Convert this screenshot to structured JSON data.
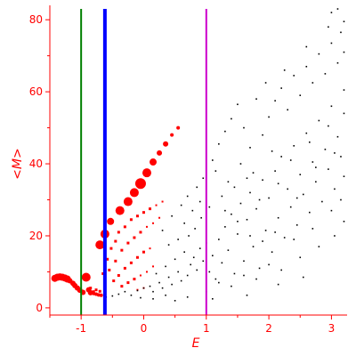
{
  "chart_data": {
    "type": "scatter",
    "title": "",
    "xlabel": "E",
    "ylabel": "<M>",
    "xlim": [
      -1.5,
      3.25
    ],
    "ylim": [
      -2,
      84
    ],
    "xticks": [
      -1,
      0,
      1,
      2,
      3
    ],
    "yticks": [
      0,
      20,
      40,
      60,
      80
    ],
    "xtick_labels": [
      "-1",
      "0",
      "1",
      "2",
      "3"
    ],
    "ytick_labels": [
      "0",
      "20",
      "40",
      "60",
      "80"
    ],
    "grid": false,
    "axis_color": "#ff0000",
    "vertical_lines": [
      {
        "x": -1.0,
        "color": "#008000",
        "weight": "thin"
      },
      {
        "x": -0.62,
        "color": "#0000ff",
        "weight": "thick"
      },
      {
        "x": 1.0,
        "color": "#cc00cc",
        "weight": "thin"
      }
    ],
    "series": [
      {
        "color": "#ff0000",
        "marker": "circle",
        "points": [
          [
            -1.42,
            8.2,
            4
          ],
          [
            -1.38,
            8.5,
            4
          ],
          [
            -1.34,
            8.6,
            4
          ],
          [
            -1.3,
            8.5,
            4
          ],
          [
            -1.26,
            8.3,
            4
          ],
          [
            -1.22,
            8.0,
            4
          ],
          [
            -1.18,
            7.5,
            3
          ],
          [
            -1.13,
            6.8,
            3
          ],
          [
            -1.1,
            6.2,
            3
          ],
          [
            -1.06,
            5.5,
            3
          ],
          [
            -1.02,
            4.9,
            3
          ],
          [
            -0.97,
            4.3,
            3
          ],
          [
            -0.92,
            8.5,
            5
          ],
          [
            -0.88,
            5.0,
            3
          ],
          [
            -0.85,
            4.2,
            3
          ],
          [
            -0.8,
            4.0,
            2
          ],
          [
            -0.76,
            3.8,
            2
          ],
          [
            -0.72,
            3.6,
            2
          ],
          [
            -0.68,
            3.5,
            2
          ],
          [
            -0.7,
            17.5,
            5
          ],
          [
            -0.62,
            20.5,
            5
          ],
          [
            -0.53,
            24.0,
            4
          ],
          [
            -0.38,
            27.0,
            5
          ],
          [
            -0.25,
            29.5,
            5
          ],
          [
            -0.15,
            32.0,
            5
          ],
          [
            -0.05,
            34.5,
            6
          ],
          [
            0.05,
            37.5,
            5
          ],
          [
            0.15,
            40.5,
            4
          ],
          [
            0.25,
            43.0,
            3
          ],
          [
            0.35,
            45.5,
            3
          ],
          [
            0.45,
            48.0,
            2
          ],
          [
            0.55,
            50.0,
            2
          ]
        ]
      },
      {
        "color": "#ff0000",
        "marker": "square",
        "points": [
          [
            -0.85,
            5.5,
            3
          ],
          [
            -0.8,
            4.5,
            3
          ],
          [
            -0.76,
            5.0,
            3
          ],
          [
            -0.7,
            4.6,
            3
          ],
          [
            -0.65,
            9.5,
            3
          ],
          [
            -0.58,
            13.5,
            3
          ],
          [
            -0.52,
            16.5,
            3
          ],
          [
            -0.45,
            18.5,
            3
          ],
          [
            -0.4,
            21.0,
            3
          ],
          [
            -0.3,
            22.5,
            3
          ],
          [
            -0.2,
            24.5,
            3
          ],
          [
            -0.1,
            25.5,
            3
          ],
          [
            0.0,
            26.5,
            3
          ],
          [
            0.1,
            27.5,
            3
          ],
          [
            0.2,
            28.5,
            2
          ],
          [
            0.3,
            29.5,
            2
          ],
          [
            -0.55,
            10.5,
            3
          ],
          [
            -0.45,
            13.0,
            3
          ],
          [
            -0.35,
            16.0,
            3
          ],
          [
            -0.25,
            18.0,
            3
          ],
          [
            -0.15,
            19.5,
            3
          ],
          [
            -0.05,
            21.0,
            3
          ],
          [
            0.05,
            22.5,
            2
          ],
          [
            0.15,
            23.5,
            2
          ],
          [
            0.25,
            25.0,
            2
          ],
          [
            -0.48,
            7.5,
            3
          ],
          [
            -0.4,
            9.0,
            3
          ],
          [
            -0.3,
            11.0,
            3
          ],
          [
            -0.2,
            12.5,
            3
          ],
          [
            -0.1,
            14.0,
            3
          ],
          [
            0.0,
            15.5,
            3
          ],
          [
            0.1,
            16.5,
            2
          ],
          [
            -0.35,
            6.0,
            3
          ],
          [
            -0.25,
            7.0,
            3
          ],
          [
            -0.15,
            8.0,
            3
          ],
          [
            -0.05,
            9.0,
            2
          ],
          [
            0.05,
            10.0,
            2
          ],
          [
            0.15,
            11.5,
            2
          ],
          [
            -0.1,
            5.0,
            2
          ],
          [
            0.0,
            5.5,
            2
          ]
        ]
      },
      {
        "color": "#000000",
        "marker": "dot",
        "points": [
          [
            -0.6,
            3.0
          ],
          [
            -0.5,
            3.3
          ],
          [
            -0.4,
            3.8
          ],
          [
            -0.3,
            4.5
          ],
          [
            -0.2,
            3.5
          ],
          [
            -0.1,
            4.8
          ],
          [
            0.0,
            5.5
          ],
          [
            0.1,
            6.0
          ],
          [
            0.15,
            4.5
          ],
          [
            0.25,
            7.0
          ],
          [
            0.3,
            5.5
          ],
          [
            0.4,
            8.5
          ],
          [
            0.45,
            6.5
          ],
          [
            0.55,
            10.0
          ],
          [
            0.6,
            7.5
          ],
          [
            0.7,
            9.0
          ],
          [
            0.75,
            12.0
          ],
          [
            0.8,
            14.0
          ],
          [
            0.85,
            10.5
          ],
          [
            0.9,
            16.5
          ],
          [
            0.95,
            13.0
          ],
          [
            1.0,
            18.0
          ],
          [
            0.2,
            9.5
          ],
          [
            0.35,
            11.5
          ],
          [
            0.5,
            13.5
          ],
          [
            0.65,
            15.5
          ],
          [
            0.72,
            20.0
          ],
          [
            0.82,
            22.0
          ],
          [
            0.92,
            25.0
          ],
          [
            0.4,
            17.5
          ],
          [
            0.55,
            19.0
          ],
          [
            0.65,
            23.5
          ],
          [
            0.78,
            27.0
          ],
          [
            0.9,
            29.5
          ],
          [
            0.3,
            21.5
          ],
          [
            0.45,
            25.5
          ],
          [
            0.6,
            28.5
          ],
          [
            0.7,
            31.0
          ],
          [
            0.85,
            33.5
          ],
          [
            0.95,
            36.0
          ],
          [
            1.05,
            10.0
          ],
          [
            1.1,
            14.5
          ],
          [
            1.15,
            8.0
          ],
          [
            1.2,
            19.0
          ],
          [
            1.25,
            12.5
          ],
          [
            1.3,
            22.5
          ],
          [
            1.35,
            16.0
          ],
          [
            1.4,
            26.0
          ],
          [
            1.45,
            9.5
          ],
          [
            1.5,
            20.5
          ],
          [
            1.55,
            29.0
          ],
          [
            1.6,
            13.0
          ],
          [
            1.65,
            24.5
          ],
          [
            1.7,
            32.0
          ],
          [
            1.75,
            17.0
          ],
          [
            1.8,
            27.5
          ],
          [
            1.85,
            11.0
          ],
          [
            1.9,
            35.5
          ],
          [
            1.95,
            21.5
          ],
          [
            2.0,
            30.5
          ],
          [
            2.05,
            15.5
          ],
          [
            2.1,
            38.0
          ],
          [
            2.15,
            25.0
          ],
          [
            2.2,
            42.0
          ],
          [
            2.25,
            19.5
          ],
          [
            2.3,
            33.0
          ],
          [
            2.35,
            28.0
          ],
          [
            2.4,
            45.0
          ],
          [
            2.45,
            23.0
          ],
          [
            2.5,
            37.0
          ],
          [
            2.55,
            31.5
          ],
          [
            2.6,
            48.5
          ],
          [
            2.65,
            26.5
          ],
          [
            2.7,
            40.5
          ],
          [
            2.75,
            35.0
          ],
          [
            2.8,
            52.0
          ],
          [
            2.85,
            29.5
          ],
          [
            2.9,
            44.0
          ],
          [
            2.95,
            38.5
          ],
          [
            3.0,
            56.0
          ],
          [
            3.05,
            33.0
          ],
          [
            3.1,
            47.5
          ],
          [
            3.15,
            42.0
          ],
          [
            3.2,
            60.5
          ],
          [
            1.1,
            41.0
          ],
          [
            1.2,
            45.5
          ],
          [
            1.3,
            49.0
          ],
          [
            1.4,
            52.5
          ],
          [
            1.5,
            56.5
          ],
          [
            1.6,
            50.0
          ],
          [
            1.7,
            44.5
          ],
          [
            1.8,
            58.0
          ],
          [
            1.9,
            48.0
          ],
          [
            2.0,
            53.0
          ],
          [
            2.1,
            57.5
          ],
          [
            2.2,
            61.0
          ],
          [
            2.3,
            55.0
          ],
          [
            2.4,
            64.5
          ],
          [
            2.5,
            59.0
          ],
          [
            2.6,
            67.0
          ],
          [
            2.7,
            62.5
          ],
          [
            2.8,
            70.5
          ],
          [
            2.9,
            65.0
          ],
          [
            3.0,
            73.5
          ],
          [
            3.1,
            68.0
          ],
          [
            3.15,
            76.5
          ],
          [
            3.2,
            71.0
          ],
          [
            3.0,
            82.0
          ],
          [
            3.1,
            83.0
          ],
          [
            3.2,
            79.5
          ],
          [
            2.95,
            78.0
          ],
          [
            2.6,
            72.5
          ],
          [
            2.25,
            66.0
          ],
          [
            1.95,
            62.5
          ],
          [
            1.15,
            38.0
          ],
          [
            1.35,
            35.0
          ],
          [
            1.55,
            40.0
          ],
          [
            1.75,
            37.5
          ],
          [
            2.05,
            43.5
          ],
          [
            2.35,
            41.0
          ],
          [
            2.65,
            46.0
          ],
          [
            2.95,
            50.5
          ],
          [
            3.2,
            54.0
          ],
          [
            1.25,
            31.0
          ],
          [
            1.45,
            33.5
          ],
          [
            1.65,
            36.0
          ],
          [
            1.85,
            30.0
          ],
          [
            2.15,
            34.5
          ],
          [
            2.45,
            30.5
          ],
          [
            2.75,
            39.0
          ],
          [
            3.05,
            43.0
          ],
          [
            3.2,
            36.5
          ],
          [
            1.05,
            28.0
          ],
          [
            1.3,
            27.0
          ],
          [
            1.5,
            24.0
          ],
          [
            1.7,
            20.0
          ],
          [
            1.9,
            18.5
          ],
          [
            2.1,
            21.0
          ],
          [
            2.4,
            19.0
          ],
          [
            2.7,
            22.0
          ],
          [
            3.0,
            27.0
          ],
          [
            3.15,
            30.0
          ],
          [
            1.2,
            7.0
          ],
          [
            1.4,
            6.0
          ],
          [
            1.6,
            9.0
          ],
          [
            1.8,
            8.0
          ],
          [
            2.0,
            12.0
          ],
          [
            2.2,
            10.5
          ],
          [
            2.5,
            14.0
          ],
          [
            2.8,
            17.0
          ],
          [
            3.05,
            20.0
          ],
          [
            3.2,
            24.0
          ],
          [
            1.0,
            4.5
          ],
          [
            1.1,
            2.5
          ],
          [
            0.7,
            3.0
          ],
          [
            0.5,
            2.0
          ],
          [
            0.35,
            3.5
          ],
          [
            0.15,
            2.5
          ],
          [
            -0.05,
            2.8
          ],
          [
            1.65,
            3.5
          ],
          [
            2.15,
            6.5
          ],
          [
            2.55,
            8.5
          ]
        ]
      }
    ]
  }
}
